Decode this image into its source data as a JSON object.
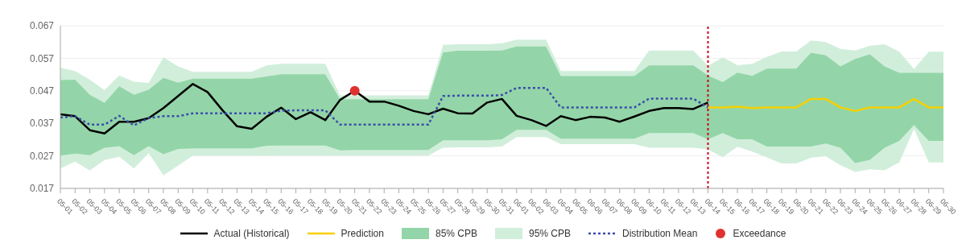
{
  "chart_data": {
    "type": "line",
    "categories": [
      "05-01",
      "05-02",
      "05-03",
      "05-04",
      "05-05",
      "05-06",
      "05-07",
      "05-08",
      "05-09",
      "05-10",
      "05-11",
      "05-12",
      "05-13",
      "05-14",
      "05-15",
      "05-16",
      "05-17",
      "05-18",
      "05-19",
      "05-20",
      "05-21",
      "05-22",
      "05-23",
      "05-24",
      "05-25",
      "05-26",
      "05-27",
      "05-28",
      "05-29",
      "05-30",
      "05-31",
      "06-01",
      "06-02",
      "06-03",
      "06-04",
      "06-05",
      "06-06",
      "06-07",
      "06-08",
      "06-09",
      "06-10",
      "06-11",
      "06-12",
      "06-13",
      "06-14",
      "06-15",
      "06-16",
      "06-17",
      "06-18",
      "06-19",
      "06-20",
      "06-21",
      "06-22",
      "06-23",
      "06-24",
      "06-25",
      "06-26",
      "06-27",
      "06-28",
      "06-29",
      "06-30"
    ],
    "series": [
      {
        "name": "Actual (Historical)",
        "type": "line",
        "color": "#000000",
        "line_style": "solid",
        "values": [
          0.0398,
          0.0392,
          0.0349,
          0.0339,
          0.0375,
          0.0375,
          0.0386,
          0.0417,
          0.0454,
          0.0491,
          0.0466,
          0.0411,
          0.0361,
          0.0353,
          0.039,
          0.0418,
          0.0383,
          0.0404,
          0.038,
          0.0442,
          0.047,
          0.0437,
          0.0437,
          0.0424,
          0.0408,
          0.0398,
          0.0415,
          0.0401,
          0.04,
          0.0434,
          0.0445,
          0.0393,
          0.038,
          0.0362,
          0.0392,
          0.038,
          0.039,
          0.0388,
          0.0375,
          0.0391,
          0.0408,
          0.0417,
          0.0417,
          0.0414,
          0.0434,
          null,
          null,
          null,
          null,
          null,
          null,
          null,
          null,
          null,
          null,
          null,
          null,
          null,
          null,
          null,
          null
        ]
      },
      {
        "name": "Prediction",
        "type": "line",
        "color": "#f5d000",
        "line_style": "solid",
        "values": [
          null,
          null,
          null,
          null,
          null,
          null,
          null,
          null,
          null,
          null,
          null,
          null,
          null,
          null,
          null,
          null,
          null,
          null,
          null,
          null,
          null,
          null,
          null,
          null,
          null,
          null,
          null,
          null,
          null,
          null,
          null,
          null,
          null,
          null,
          null,
          null,
          null,
          null,
          null,
          null,
          null,
          null,
          null,
          null,
          0.0419,
          0.0419,
          0.0421,
          0.0417,
          0.0419,
          0.0419,
          0.0419,
          0.0445,
          0.0445,
          0.0419,
          0.0408,
          0.0419,
          0.0419,
          0.0419,
          0.0445,
          0.0419,
          0.0419
        ]
      },
      {
        "name": "85% CPB",
        "type": "area",
        "color": "#93d5a8",
        "lower": [
          0.0271,
          0.0277,
          0.0272,
          0.0295,
          0.03,
          0.0272,
          0.03,
          0.0275,
          0.0291,
          0.0293,
          0.0293,
          0.0293,
          0.0293,
          0.0293,
          0.0301,
          0.0302,
          0.0302,
          0.0302,
          0.0302,
          0.0287,
          0.0288,
          0.0288,
          0.0288,
          0.0288,
          0.0288,
          0.0288,
          0.0318,
          0.0318,
          0.0318,
          0.0318,
          0.0321,
          0.035,
          0.035,
          0.035,
          0.0323,
          0.0323,
          0.0323,
          0.0323,
          0.0323,
          0.0323,
          0.034,
          0.034,
          0.034,
          0.034,
          0.0321,
          0.034,
          0.0321,
          0.0321,
          0.0299,
          0.0299,
          0.0299,
          0.0299,
          0.0308,
          0.0295,
          0.0248,
          0.0258,
          0.0295,
          0.0316,
          0.0365,
          0.0316,
          0.0316
        ],
        "values": [
          null,
          null,
          null,
          null,
          null,
          null,
          null,
          null,
          null,
          null,
          null,
          null,
          null,
          null,
          null,
          null,
          null,
          null,
          null,
          null,
          null,
          null,
          null,
          null,
          null,
          null,
          null,
          null,
          null,
          null,
          null,
          null,
          null,
          null,
          null,
          null,
          null,
          null,
          null,
          null,
          null,
          null,
          null,
          null,
          null,
          null,
          null,
          null,
          null,
          null,
          null,
          null,
          null,
          null,
          null,
          null,
          null,
          null,
          null,
          null,
          null
        ],
        "upper": [
          0.0503,
          0.0504,
          0.0458,
          0.0433,
          0.0484,
          0.0458,
          0.0473,
          0.051,
          0.0495,
          0.0507,
          0.0507,
          0.0507,
          0.0507,
          0.0507,
          0.0514,
          0.0521,
          0.0521,
          0.0521,
          0.0521,
          0.0444,
          0.0444,
          0.0444,
          0.0444,
          0.0444,
          0.0444,
          0.0444,
          0.0588,
          0.0593,
          0.0593,
          0.0593,
          0.0594,
          0.0606,
          0.0606,
          0.0606,
          0.0515,
          0.0515,
          0.0515,
          0.0515,
          0.0515,
          0.0515,
          0.0548,
          0.0548,
          0.0548,
          0.0548,
          0.0517,
          0.0497,
          0.0526,
          0.0516,
          0.0538,
          0.0538,
          0.0538,
          0.0587,
          0.0579,
          0.0545,
          0.0568,
          0.0582,
          0.0545,
          0.0525,
          0.0525,
          0.0525,
          0.0525
        ]
      },
      {
        "name": "95% CPB",
        "type": "area",
        "color": "#d1eedb",
        "lower": [
          0.0232,
          0.0252,
          0.0225,
          0.0257,
          0.0267,
          0.0231,
          0.0279,
          0.021,
          0.024,
          0.0271,
          0.0271,
          0.0271,
          0.0271,
          0.0271,
          0.027,
          0.0271,
          0.0271,
          0.0271,
          0.0271,
          0.0271,
          0.0271,
          0.0271,
          0.0271,
          0.0271,
          0.0271,
          0.0271,
          0.0295,
          0.0296,
          0.0296,
          0.0296,
          0.0299,
          0.0328,
          0.0328,
          0.0328,
          0.0306,
          0.0306,
          0.0306,
          0.0306,
          0.0306,
          0.0306,
          0.0295,
          0.0295,
          0.0295,
          0.0295,
          0.029,
          0.0266,
          0.0298,
          0.0283,
          0.0265,
          0.0247,
          0.0247,
          0.0264,
          0.0269,
          0.0241,
          0.0221,
          0.0229,
          0.0226,
          0.025,
          0.0353,
          0.025,
          0.025
        ],
        "values": [
          null,
          null,
          null,
          null,
          null,
          null,
          null,
          null,
          null,
          null,
          null,
          null,
          null,
          null,
          null,
          null,
          null,
          null,
          null,
          null,
          null,
          null,
          null,
          null,
          null,
          null,
          null,
          null,
          null,
          null,
          null,
          null,
          null,
          null,
          null,
          null,
          null,
          null,
          null,
          null,
          null,
          null,
          null,
          null,
          null,
          null,
          null,
          null,
          null,
          null,
          null,
          null,
          null,
          null,
          null,
          null,
          null,
          null,
          null,
          null,
          null
        ],
        "upper": [
          0.0541,
          0.0531,
          0.0504,
          0.0472,
          0.0517,
          0.0498,
          0.0494,
          0.0573,
          0.0545,
          0.0528,
          0.0528,
          0.0528,
          0.0528,
          0.0528,
          0.0548,
          0.0553,
          0.0553,
          0.0553,
          0.0553,
          0.0456,
          0.0456,
          0.0456,
          0.0456,
          0.0456,
          0.0456,
          0.0456,
          0.0611,
          0.0613,
          0.0613,
          0.0613,
          0.0616,
          0.0627,
          0.0627,
          0.0627,
          0.0531,
          0.0531,
          0.0531,
          0.0531,
          0.0531,
          0.0531,
          0.0594,
          0.0594,
          0.0594,
          0.0594,
          0.0547,
          0.0573,
          0.0549,
          0.0553,
          0.0574,
          0.0591,
          0.0591,
          0.0625,
          0.062,
          0.0599,
          0.0594,
          0.0609,
          0.0613,
          0.059,
          0.0537,
          0.059,
          0.059
        ]
      },
      {
        "name": "Distribution Mean",
        "type": "line",
        "color": "#3a4eaa",
        "line_style": "dotted",
        "values": [
          0.0388,
          0.0392,
          0.0366,
          0.0366,
          0.0393,
          0.0364,
          0.0386,
          0.0392,
          0.0392,
          0.0401,
          0.0401,
          0.0401,
          0.0401,
          0.0401,
          0.0401,
          0.0409,
          0.041,
          0.041,
          0.041,
          0.0366,
          0.0366,
          0.0366,
          0.0366,
          0.0366,
          0.0366,
          0.0366,
          0.0454,
          0.0455,
          0.0455,
          0.0455,
          0.0457,
          0.0479,
          0.0479,
          0.0479,
          0.0419,
          0.0419,
          0.0419,
          0.0419,
          0.0419,
          0.0419,
          0.0446,
          0.0446,
          0.0446,
          0.0446,
          0.0419,
          null,
          null,
          null,
          null,
          null,
          null,
          null,
          null,
          null,
          null,
          null,
          null,
          null,
          null,
          null,
          null
        ]
      },
      {
        "name": "Exceedance",
        "type": "scatter",
        "color": "#e03131",
        "marker": "circle",
        "x": [
          "05-21"
        ],
        "values": [
          0.047
        ]
      }
    ],
    "ylim": [
      0.017,
      0.067
    ],
    "yticks": [
      0.017,
      0.027,
      0.037,
      0.047,
      0.057,
      0.067
    ],
    "grid": "y",
    "legend": "bottom",
    "marker": "none",
    "ref_lines": [
      {
        "axis": "x",
        "value": "06-14",
        "color": "#d0021b",
        "line_style": "dotted"
      }
    ]
  }
}
